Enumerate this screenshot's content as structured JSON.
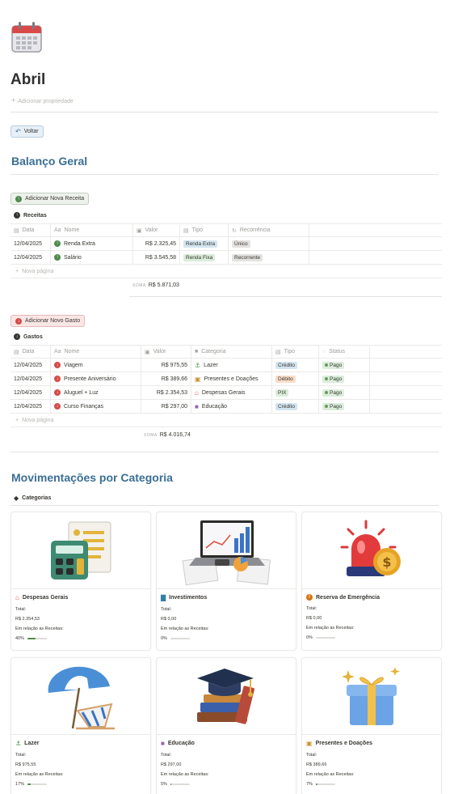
{
  "page": {
    "icon": "calendar-icon",
    "title": "Abril",
    "add_property": "Adicionar propriedade",
    "back_button": "Voltar"
  },
  "balanco": {
    "heading": "Balanço Geral",
    "add_receita": "Adicionar Nova Receita",
    "receitas_label": "Receitas",
    "receitas_columns": [
      "Data",
      "Nome",
      "Valor",
      "Tipo",
      "Recorrência"
    ],
    "receitas": [
      {
        "data": "12/04/2025",
        "nome": "Renda Extra",
        "valor": "R$ 2.325,45",
        "tipo": "Renda Extra",
        "recorrencia": "Único"
      },
      {
        "data": "12/04/2025",
        "nome": "Salário",
        "valor": "R$ 3.545,58",
        "tipo": "Renda Fixa",
        "recorrencia": "Recorrente"
      }
    ],
    "nova_pagina": "Nova página",
    "soma_label": "SOMA",
    "receitas_soma": "R$ 5.871,03",
    "add_gasto": "Adicionar Novo Gasto",
    "gastos_label": "Gastos",
    "gastos_columns": [
      "Data",
      "Nome",
      "Valor",
      "Categoria",
      "Tipo",
      "Status"
    ],
    "gastos": [
      {
        "data": "12/04/2025",
        "nome": "Viagem",
        "valor": "R$ 975,55",
        "categoria": "Lazer",
        "cat_icon": "beach-chair-icon",
        "tipo": "Crédito",
        "status": "Pago"
      },
      {
        "data": "12/04/2025",
        "nome": "Presente Aniversário",
        "valor": "R$ 389,66",
        "categoria": "Presentes e Doações",
        "cat_icon": "gift-icon",
        "tipo": "Débito",
        "status": "Pago"
      },
      {
        "data": "12/04/2025",
        "nome": "Aluguel + Luz",
        "valor": "R$ 2.354,53",
        "categoria": "Despesas Gerais",
        "cat_icon": "house-icon",
        "tipo": "PIX",
        "status": "Pago"
      },
      {
        "data": "12/04/2025",
        "nome": "Curso Finanças",
        "valor": "R$ 297,00",
        "categoria": "Educação",
        "cat_icon": "book-icon",
        "tipo": "Crédito",
        "status": "Pago"
      }
    ],
    "gastos_soma": "R$ 4.016,74"
  },
  "movimentacoes": {
    "heading": "Movimentações por Categoria",
    "categorias_label": "Categorias",
    "total_label": "Total:",
    "relacao_label": "Em relação as Receitas:",
    "cards": [
      {
        "title": "Despesas Gerais",
        "icon": "house-icon",
        "total": "R$ 2.354,53",
        "pct_label": "40%",
        "pct": 0.4
      },
      {
        "title": "Investimentos",
        "icon": "bar-chart-icon",
        "total": "R$ 0,00",
        "pct_label": "0%",
        "pct": 0
      },
      {
        "title": "Reserva de Emergência",
        "icon": "alert-icon",
        "total": "R$ 0,00",
        "pct_label": "0%",
        "pct": 0
      },
      {
        "title": "Lazer",
        "icon": "beach-chair-icon",
        "total": "R$ 975,55",
        "pct_label": "17%",
        "pct": 0.17
      },
      {
        "title": "Educação",
        "icon": "book-icon",
        "total": "R$ 297,00",
        "pct_label": "5%",
        "pct": 0.05
      },
      {
        "title": "Presentes e Doações",
        "icon": "gift-icon",
        "total": "R$ 389,66",
        "pct_label": "7%",
        "pct": 0.07
      }
    ]
  },
  "colors": {
    "heading": "#3a6f94",
    "tag_blue": "#d3e5ef",
    "tag_green": "#dbeddb",
    "tag_gray": "#e3e2e0",
    "tag_orange": "#fadec9",
    "tag_teal": "#dbeddb",
    "progress": "#4e8a4c"
  }
}
